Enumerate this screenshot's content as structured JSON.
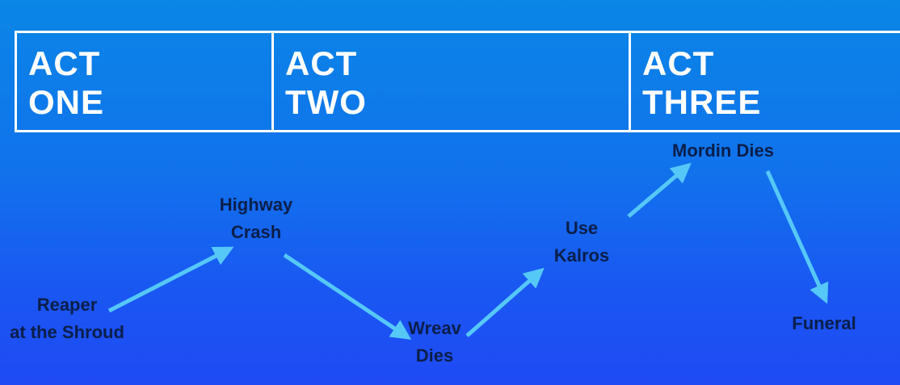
{
  "acts": [
    {
      "line1": "ACT",
      "line2": "ONE"
    },
    {
      "line1": "ACT",
      "line2": "TWO"
    },
    {
      "line1": "ACT",
      "line2": "THREE"
    }
  ],
  "events": [
    {
      "id": "reaper",
      "lines": [
        "Reaper",
        "at the Shroud"
      ]
    },
    {
      "id": "highway",
      "lines": [
        "Highway",
        "Crash"
      ]
    },
    {
      "id": "wreav",
      "lines": [
        "Wreav",
        "Dies"
      ]
    },
    {
      "id": "kalros",
      "lines": [
        "Use",
        "Kalros"
      ]
    },
    {
      "id": "mordin",
      "lines": [
        "Mordin Dies"
      ]
    },
    {
      "id": "funeral",
      "lines": [
        "Funeral"
      ]
    }
  ],
  "colors": {
    "arrow": "#55c8f8",
    "text": "#0b1e4a",
    "border": "#ffffff"
  }
}
